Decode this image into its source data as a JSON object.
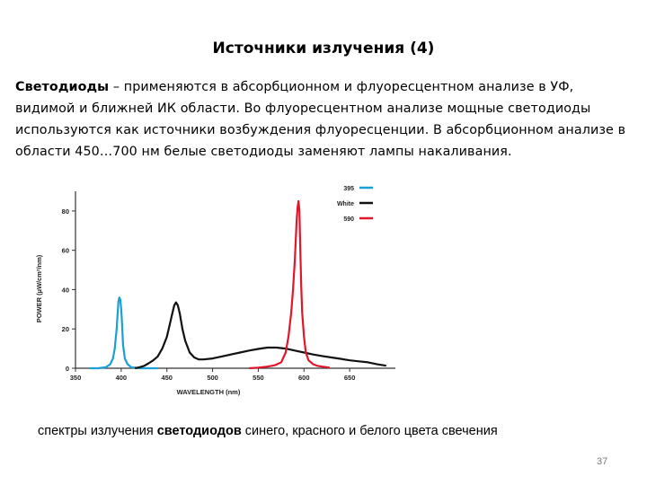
{
  "slide": {
    "title": "Источники излучения (4)",
    "paragraph_bold": "Светодиоды",
    "paragraph_rest": " – применяются в абсорбционном и флуоресцентном анализе в УФ, видимой и ближней ИК области. Во флуоресцентном анализе мощные светодиоды используются как источники возбуждения флуоресценции. В абсорбционном анализе в области 450…700 нм белые светодиоды заменяют лампы накаливания.",
    "caption_before": "спектры излучения ",
    "caption_bold": "светодиодов",
    "caption_after": " синего, красного и белого цвета свечения",
    "page_number": "37"
  },
  "chart_data": {
    "type": "line",
    "title": "",
    "xlabel": "WAVELENGTH (nm)",
    "ylabel": "POWER (µW/cm²/nm)",
    "xlim": [
      350,
      700
    ],
    "ylim": [
      0,
      90
    ],
    "xticks": [
      "350",
      "400",
      "450",
      "500",
      "550",
      "600",
      "650"
    ],
    "xtick_values": [
      350,
      400,
      450,
      500,
      550,
      600,
      650
    ],
    "yticks": [
      "0",
      "20",
      "40",
      "60",
      "80"
    ],
    "ytick_values": [
      0,
      20,
      40,
      60,
      80
    ],
    "legend_position": "top-right",
    "series": [
      {
        "name": "395",
        "color": "#1a9fd6",
        "points": [
          [
            365,
            0
          ],
          [
            375,
            0
          ],
          [
            383,
            0.5
          ],
          [
            388,
            2
          ],
          [
            391,
            5
          ],
          [
            393,
            10
          ],
          [
            395,
            20
          ],
          [
            396,
            27
          ],
          [
            397,
            34
          ],
          [
            398,
            36
          ],
          [
            399,
            35
          ],
          [
            400,
            30
          ],
          [
            401,
            22
          ],
          [
            402,
            12
          ],
          [
            404,
            5
          ],
          [
            407,
            2
          ],
          [
            411,
            0.5
          ],
          [
            420,
            0
          ],
          [
            440,
            0
          ]
        ]
      },
      {
        "name": "White",
        "color": "#111111",
        "points": [
          [
            415,
            0
          ],
          [
            420,
            0.5
          ],
          [
            425,
            1.2
          ],
          [
            430,
            2.5
          ],
          [
            435,
            4
          ],
          [
            440,
            6
          ],
          [
            445,
            10
          ],
          [
            450,
            16
          ],
          [
            453,
            22
          ],
          [
            456,
            28
          ],
          [
            458,
            32
          ],
          [
            460,
            33.5
          ],
          [
            462,
            32
          ],
          [
            464,
            28
          ],
          [
            467,
            20
          ],
          [
            470,
            14
          ],
          [
            475,
            8
          ],
          [
            480,
            5.5
          ],
          [
            485,
            4.5
          ],
          [
            490,
            4.5
          ],
          [
            500,
            5
          ],
          [
            510,
            6
          ],
          [
            520,
            7
          ],
          [
            530,
            8
          ],
          [
            540,
            9
          ],
          [
            550,
            9.8
          ],
          [
            560,
            10.5
          ],
          [
            570,
            10.5
          ],
          [
            580,
            10
          ],
          [
            590,
            9
          ],
          [
            600,
            8
          ],
          [
            610,
            7
          ],
          [
            620,
            6.2
          ],
          [
            630,
            5.5
          ],
          [
            640,
            4.8
          ],
          [
            650,
            4
          ],
          [
            660,
            3.5
          ],
          [
            670,
            3
          ],
          [
            680,
            2
          ],
          [
            690,
            1.3
          ]
        ]
      },
      {
        "name": "590",
        "color": "#e2162a",
        "points": [
          [
            540,
            0
          ],
          [
            550,
            0.3
          ],
          [
            560,
            0.8
          ],
          [
            568,
            1.5
          ],
          [
            575,
            3
          ],
          [
            580,
            8
          ],
          [
            583,
            16
          ],
          [
            586,
            28
          ],
          [
            588,
            40
          ],
          [
            590,
            55
          ],
          [
            591,
            65
          ],
          [
            592,
            75
          ],
          [
            593,
            82
          ],
          [
            594,
            85
          ],
          [
            595,
            80
          ],
          [
            596,
            60
          ],
          [
            597,
            42
          ],
          [
            598,
            28
          ],
          [
            600,
            16
          ],
          [
            602,
            8
          ],
          [
            605,
            4
          ],
          [
            610,
            2
          ],
          [
            615,
            1.2
          ],
          [
            620,
            0.8
          ],
          [
            628,
            0.3
          ]
        ]
      }
    ]
  }
}
